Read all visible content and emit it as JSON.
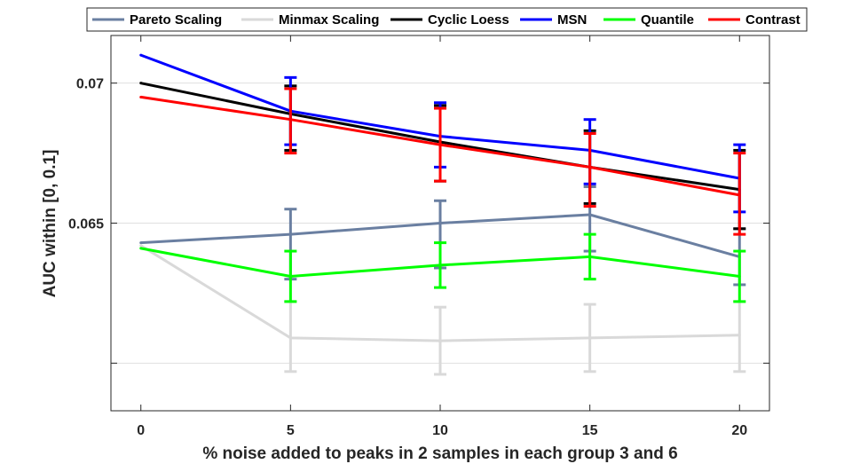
{
  "chart_data": {
    "type": "line",
    "title": "",
    "xlabel": "% noise added to peaks in 2 samples in each group 3 and 6",
    "ylabel": "AUC within [0, 0.1]",
    "x": [
      0,
      5,
      10,
      15,
      20
    ],
    "x_tick_labels": [
      "0",
      "5",
      "10",
      "15",
      "20"
    ],
    "xlim": [
      -1.0,
      21.0
    ],
    "ylim": [
      0.0583,
      0.0717
    ],
    "y_ticks": [
      0.06,
      0.065,
      0.07
    ],
    "y_tick_labels": [
      "",
      "0.065",
      "0.07"
    ],
    "grid": true,
    "legend_position": "top",
    "series": [
      {
        "name": "Pareto Scaling",
        "color": "#6a7fa1",
        "values": [
          0.0643,
          0.0646,
          0.065,
          0.0653,
          0.0638
        ],
        "err_low": [
          null,
          0.063,
          0.0634,
          0.064,
          0.0628
        ],
        "err_high": [
          null,
          0.0655,
          0.0658,
          0.0663,
          0.0648
        ]
      },
      {
        "name": "Minmax Scaling",
        "color": "#d9d9d9",
        "values": [
          0.0642,
          0.0609,
          0.0608,
          0.0609,
          0.061
        ],
        "err_low": [
          null,
          0.0597,
          0.0596,
          0.0597,
          0.0597
        ],
        "err_high": [
          null,
          0.0622,
          0.062,
          0.0621,
          0.0622
        ]
      },
      {
        "name": "Cyclic Loess",
        "color": "#000000",
        "values": [
          0.07,
          0.0689,
          0.0679,
          0.067,
          0.0662
        ],
        "err_low": [
          null,
          0.0676,
          0.0665,
          0.0657,
          0.0648
        ],
        "err_high": [
          null,
          0.0699,
          0.0692,
          0.0683,
          0.0676
        ]
      },
      {
        "name": "MSN",
        "color": "#0000ff",
        "values": [
          0.071,
          0.069,
          0.0681,
          0.0676,
          0.0666
        ],
        "err_low": [
          null,
          0.0678,
          0.067,
          0.0664,
          0.0654
        ],
        "err_high": [
          null,
          0.0702,
          0.0693,
          0.0687,
          0.0678
        ]
      },
      {
        "name": "Quantile",
        "color": "#00ff00",
        "values": [
          0.0641,
          0.0631,
          0.0635,
          0.0638,
          0.0631
        ],
        "err_low": [
          null,
          0.0622,
          0.0627,
          0.063,
          0.0622
        ],
        "err_high": [
          null,
          0.064,
          0.0643,
          0.0646,
          0.064
        ]
      },
      {
        "name": "Contrast",
        "color": "#ff0000",
        "values": [
          0.0695,
          0.0687,
          0.0678,
          0.067,
          0.066
        ],
        "err_low": [
          null,
          0.0675,
          0.0665,
          0.0656,
          0.0646
        ],
        "err_high": [
          null,
          0.0698,
          0.0691,
          0.0682,
          0.0675
        ]
      }
    ]
  }
}
